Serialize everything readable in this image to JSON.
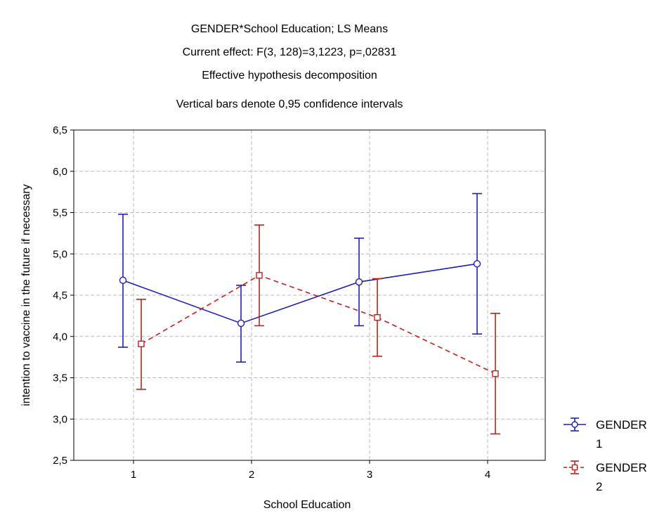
{
  "chart_data": {
    "type": "line",
    "title_lines": [
      "GENDER*School Education; LS Means",
      "Current effect: F(3, 128)=3,1223, p=,02831",
      "Effective hypothesis decomposition",
      "Vertical bars denote 0,95 confidence intervals"
    ],
    "xlabel": "School Education",
    "ylabel": "intention to vaccine in the future if necessary",
    "categories": [
      "1",
      "2",
      "3",
      "4"
    ],
    "ylim": [
      2.5,
      6.5
    ],
    "yticks": [
      2.5,
      3.0,
      3.5,
      4.0,
      4.5,
      5.0,
      5.5,
      6.0,
      6.5
    ],
    "ytick_labels": [
      "2,5",
      "3,0",
      "3,5",
      "4,0",
      "4,5",
      "5,0",
      "5,5",
      "6,0",
      "6,5"
    ],
    "grid": true,
    "legend_position": "right",
    "series": [
      {
        "name": "GENDER 1",
        "name_lines": [
          "GENDER",
          "1"
        ],
        "color": "#1f1fb4",
        "line_style": "solid",
        "marker": "circle",
        "values": [
          4.68,
          4.16,
          4.66,
          4.88
        ],
        "ci_low": [
          3.87,
          3.69,
          4.13,
          4.03
        ],
        "ci_high": [
          5.48,
          4.62,
          5.19,
          5.73
        ]
      },
      {
        "name": "GENDER 2",
        "name_lines": [
          "GENDER",
          "2"
        ],
        "color": "#c41e1e",
        "line_style": "dashed",
        "marker": "square",
        "values": [
          3.91,
          4.74,
          4.23,
          3.55
        ],
        "ci_low": [
          3.36,
          4.13,
          3.76,
          2.82
        ],
        "ci_high": [
          4.45,
          5.35,
          4.7,
          4.28
        ]
      }
    ]
  }
}
